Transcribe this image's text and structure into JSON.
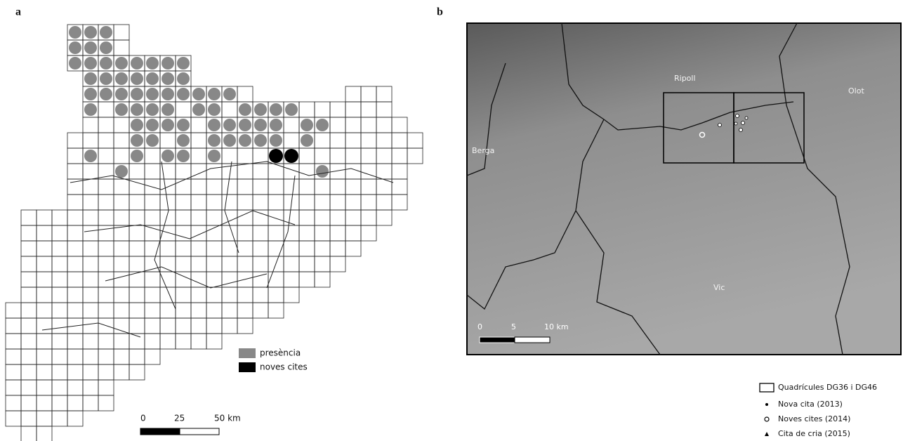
{
  "panel_a": {
    "label": "a",
    "legend": [
      "presència",
      "noves cites"
    ],
    "scale": [
      "0",
      "25",
      "50 km"
    ]
  },
  "panel_b": {
    "label": "b",
    "places": [
      "Ripoll",
      "Olot",
      "Berga",
      "Vic"
    ],
    "scale": [
      "0",
      "5",
      "10 km"
    ],
    "legend": [
      "Quadrícules DG36 i DG46",
      "Nova cita (2013)",
      "Noves cites (2014)",
      "Cita de cria (2015)"
    ]
  }
}
